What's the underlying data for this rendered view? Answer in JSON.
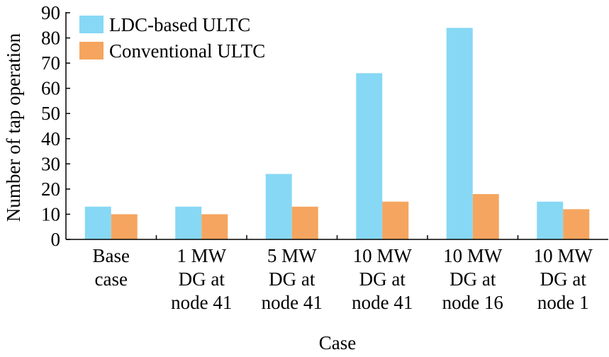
{
  "chart_data": {
    "type": "bar",
    "title": "",
    "xlabel": "Case",
    "ylabel": "Number of tap operation",
    "ylim": [
      0,
      90
    ],
    "yticks": [
      0,
      10,
      20,
      30,
      40,
      50,
      60,
      70,
      80,
      90
    ],
    "categories": [
      [
        "Base",
        "case"
      ],
      [
        "1 MW",
        "DG at",
        "node 41"
      ],
      [
        "5 MW",
        "DG at",
        "node 41"
      ],
      [
        "10 MW",
        "DG at",
        "node 41"
      ],
      [
        "10 MW",
        "DG at",
        "node 16"
      ],
      [
        "10 MW",
        "DG at",
        "node 1"
      ]
    ],
    "series": [
      {
        "name": "LDC-based ULTC",
        "color": "#87d8f5",
        "values": [
          13,
          13,
          26,
          66,
          84,
          15
        ]
      },
      {
        "name": "Conventional ULTC",
        "color": "#f5a55f",
        "values": [
          10,
          10,
          13,
          15,
          18,
          12
        ]
      }
    ],
    "legend": "top-left",
    "grid": false
  }
}
